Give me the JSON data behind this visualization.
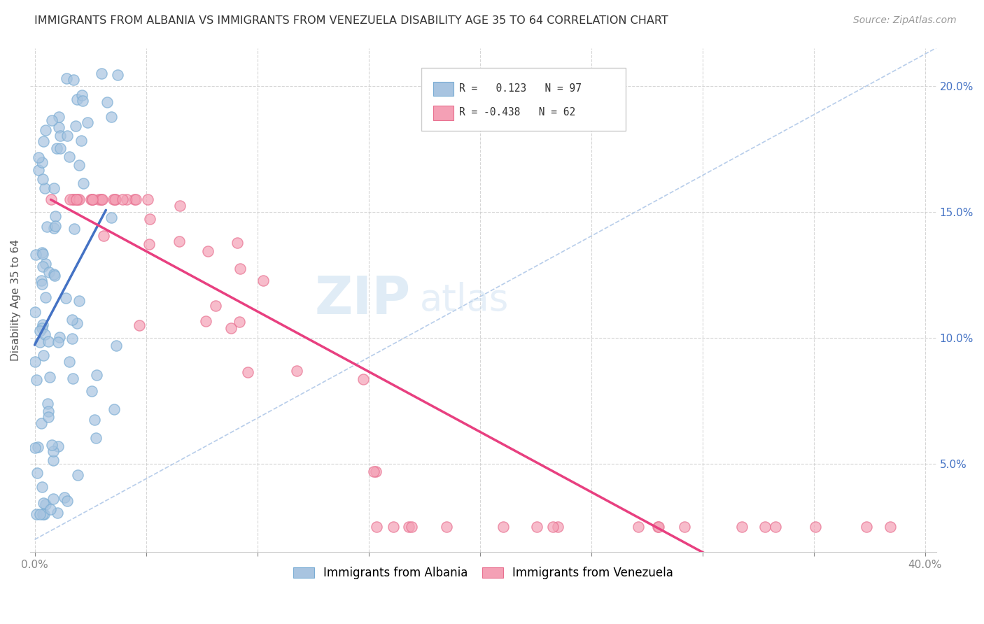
{
  "title": "IMMIGRANTS FROM ALBANIA VS IMMIGRANTS FROM VENEZUELA DISABILITY AGE 35 TO 64 CORRELATION CHART",
  "source": "Source: ZipAtlas.com",
  "ylabel": "Disability Age 35 to 64",
  "xlim": [
    -0.002,
    0.405
  ],
  "ylim": [
    0.015,
    0.215
  ],
  "x_ticks": [
    0.0,
    0.05,
    0.1,
    0.15,
    0.2,
    0.25,
    0.3,
    0.35,
    0.4
  ],
  "x_tick_labels": [
    "0.0%",
    "",
    "",
    "",
    "",
    "",
    "",
    "",
    "40.0%"
  ],
  "y_ticks": [
    0.05,
    0.1,
    0.15,
    0.2
  ],
  "y_tick_labels_right": [
    "5.0%",
    "10.0%",
    "15.0%",
    "20.0%"
  ],
  "albania_color": "#a8c4e0",
  "albania_edge_color": "#7aadd4",
  "venezuela_color": "#f4a0b5",
  "venezuela_edge_color": "#e87090",
  "albania_line_color": "#4472c4",
  "venezuela_line_color": "#e84080",
  "dashed_line_color": "#b0c8e8",
  "legend_albania_label": "Immigrants from Albania",
  "legend_venezuela_label": "Immigrants from Venezuela",
  "R_albania": 0.123,
  "N_albania": 97,
  "R_venezuela": -0.438,
  "N_venezuela": 62,
  "watermark_zip": "ZIP",
  "watermark_atlas": "atlas",
  "title_fontsize": 11.5,
  "source_fontsize": 10,
  "axis_label_fontsize": 11,
  "watermark_fontsize_big": 54,
  "watermark_fontsize_small": 38
}
